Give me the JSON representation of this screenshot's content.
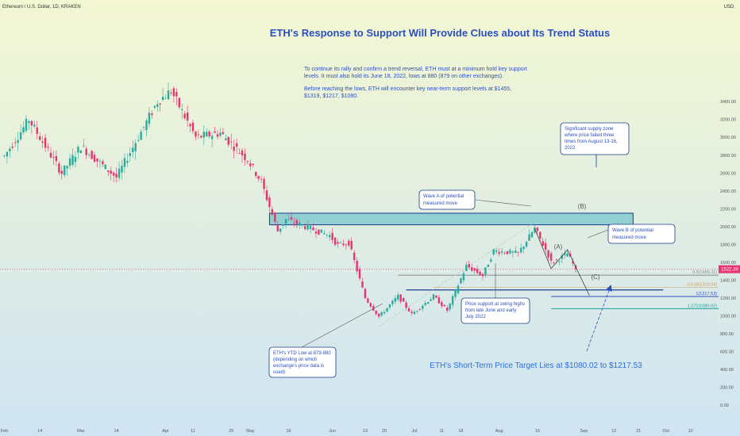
{
  "header": {
    "symbol": "Ethereum / U.S. Dollar, 1D, KRAKEN",
    "currency": "USD"
  },
  "colors": {
    "bg_top": "#f3f7d2",
    "bg_bottom": "#cfe4f3",
    "up": "#2bab9e",
    "down": "#e8336f",
    "accent_blue": "#2c4fc0",
    "zone_fill": "#83c9cf",
    "zone_stroke": "#1a3c8c",
    "target_text": "#2c6fd6",
    "fib_gray": "#888888",
    "fib_orange": "#c9a060",
    "fib_blue": "#2c4fc0",
    "fib_teal": "#1aa39a",
    "price_tag": "#e8336f"
  },
  "chart_data": {
    "type": "candlestick",
    "title": "ETH's Response to Support Will Provide Clues about Its Trend Status",
    "ylim": [
      -80,
      4450
    ],
    "y_ticks": [
      "0.00",
      "200.00",
      "400.00",
      "600.00",
      "800.00",
      "1000.00",
      "1200.00",
      "1400.00",
      "1600.00",
      "1800.00",
      "2000.00",
      "2200.00",
      "2400.00",
      "2600.00",
      "2800.00",
      "3000.00",
      "3200.00",
      "3400.00"
    ],
    "x_ticks": [
      "Feb",
      "14",
      "Mar",
      "14",
      "Apr",
      "11",
      "25",
      "May",
      "16",
      "Jun",
      "13",
      "20",
      "Jul",
      "11",
      "18",
      "Aug",
      "15",
      "Sep",
      "12",
      "21",
      "Oct",
      "10"
    ],
    "current_price": "1522.39",
    "anchors": [
      [
        "2022-02-01",
        2790
      ],
      [
        "2022-02-10",
        3200
      ],
      [
        "2022-02-22",
        2600
      ],
      [
        "2022-03-01",
        2900
      ],
      [
        "2022-03-14",
        2550
      ],
      [
        "2022-03-29",
        3400
      ],
      [
        "2022-04-03",
        3520
      ],
      [
        "2022-04-12",
        3000
      ],
      [
        "2022-04-21",
        3050
      ],
      [
        "2022-05-01",
        2750
      ],
      [
        "2022-05-06",
        2500
      ],
      [
        "2022-05-12",
        1950
      ],
      [
        "2022-05-15",
        2080
      ],
      [
        "2022-05-31",
        1900
      ],
      [
        "2022-06-03",
        1790
      ],
      [
        "2022-06-07",
        1820
      ],
      [
        "2022-06-13",
        1200
      ],
      [
        "2022-06-18",
        990
      ],
      [
        "2022-06-25",
        1220
      ],
      [
        "2022-06-30",
        1020
      ],
      [
        "2022-07-08",
        1220
      ],
      [
        "2022-07-13",
        1060
      ],
      [
        "2022-07-20",
        1560
      ],
      [
        "2022-07-26",
        1450
      ],
      [
        "2022-07-30",
        1730
      ],
      [
        "2022-08-08",
        1700
      ],
      [
        "2022-08-14",
        1980
      ],
      [
        "2022-08-19",
        1680
      ],
      [
        "2022-08-20",
        1600
      ],
      [
        "2022-08-22",
        1620
      ],
      [
        "2022-08-26",
        1700
      ],
      [
        "2022-08-29",
        1522
      ]
    ],
    "supply_zone": [
      2020,
      2150
    ],
    "support_line": 1290,
    "fib_levels": [
      {
        "label": "0.5(1455.11)",
        "value": 1455
      },
      {
        "label": "0.618(1319.04)",
        "value": 1319
      },
      {
        "label": "1(1217.53)",
        "value": 1217
      },
      {
        "label": "1.272(1080.02)",
        "value": 1080
      }
    ]
  },
  "notes": {
    "intro_line1": "To continue its rally and confirm a trend reversal, ETH must at a minimum hold key support",
    "intro_line2": "levels. It must also hold its June 18, 2022, lows at 880 (879 on other exchanges).",
    "intro_line3": "Before reaching the lows, ETH will encounter key near-term support levels at $1455,",
    "intro_line4": "$1319, $1217, $1080.",
    "supply_lines": [
      "Significant supply zone",
      "where price failed three",
      "times from August 13-16,",
      "2022"
    ],
    "wave_a_lines": [
      "Wave A of potential",
      "measured move"
    ],
    "wave_b_lines": [
      "Wave B of potential",
      "measured move"
    ],
    "swing_lines": [
      "Price support at swing highs",
      "from late June and early",
      "July 2022"
    ],
    "ytd_lines": [
      "ETH's YTD Low at 879-880",
      "(depending on which",
      "exchange's price data is",
      "used)"
    ],
    "target": "ETH's Short-Term Price Target Lies at $1080.02 to $1217.53",
    "label_a": "(A)",
    "label_b": "(B)",
    "label_c": "(C)"
  }
}
